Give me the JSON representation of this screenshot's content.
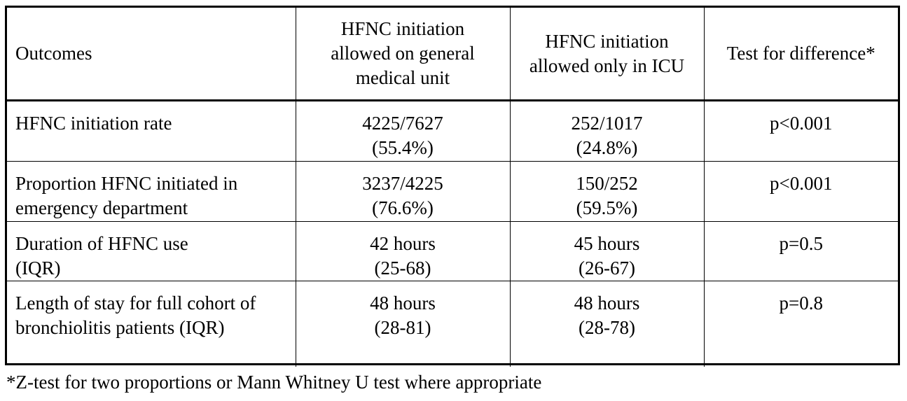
{
  "table": {
    "headers": [
      "Outcomes",
      "HFNC initiation allowed on general medical unit",
      "HFNC initiation allowed only in ICU",
      "Test for difference*"
    ],
    "rows": [
      {
        "outcome": "HFNC initiation rate",
        "general_unit": [
          "4225/7627",
          "(55.4%)"
        ],
        "icu_only": [
          "252/1017",
          "(24.8%)"
        ],
        "test": "p<0.001"
      },
      {
        "outcome": "Proportion HFNC initiated in emergency department",
        "general_unit": [
          "3237/4225",
          "(76.6%)"
        ],
        "icu_only": [
          "150/252",
          "(59.5%)"
        ],
        "test": "p<0.001"
      },
      {
        "outcome": "Duration of HFNC use (IQR)",
        "general_unit": [
          "42 hours",
          "(25-68)"
        ],
        "icu_only": [
          "45 hours",
          "(26-67)"
        ],
        "test": "p=0.5"
      },
      {
        "outcome": "Length of stay for full cohort of bronchiolitis patients (IQR)",
        "general_unit": [
          "48 hours",
          "(28-81)"
        ],
        "icu_only": [
          "48 hours",
          "(28-78)"
        ],
        "test": "p=0.8"
      }
    ]
  },
  "footnote": "*Z-test for two proportions or Mann Whitney U test where appropriate"
}
